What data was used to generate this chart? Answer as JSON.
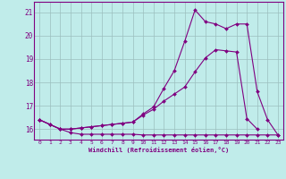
{
  "xlabel": "Windchill (Refroidissement éolien,°C)",
  "bg_color": "#c0ecea",
  "line_color": "#800080",
  "grid_color": "#9bbfbe",
  "xlim": [
    -0.5,
    23.5
  ],
  "ylim": [
    15.55,
    21.45
  ],
  "yticks": [
    16,
    17,
    18,
    19,
    20,
    21
  ],
  "xticks": [
    0,
    1,
    2,
    3,
    4,
    5,
    6,
    7,
    8,
    9,
    10,
    11,
    12,
    13,
    14,
    15,
    16,
    17,
    18,
    19,
    20,
    21,
    22,
    23
  ],
  "line1_x": [
    0,
    1,
    2,
    3,
    4,
    5,
    6,
    7,
    8,
    9,
    10,
    11,
    12,
    13,
    14,
    15,
    16,
    17,
    18,
    19,
    20,
    21,
    22,
    23
  ],
  "line1_y": [
    16.4,
    16.2,
    16.0,
    15.85,
    15.78,
    15.78,
    15.78,
    15.78,
    15.78,
    15.78,
    15.75,
    15.75,
    15.75,
    15.75,
    15.75,
    15.75,
    15.75,
    15.75,
    15.75,
    15.75,
    15.75,
    15.75,
    15.75,
    15.75
  ],
  "line2_x": [
    0,
    1,
    2,
    3,
    4,
    5,
    6,
    7,
    8,
    9,
    10,
    11,
    12,
    13,
    14,
    15,
    16,
    17,
    18,
    19,
    20,
    21
  ],
  "line2_y": [
    16.4,
    16.2,
    16.0,
    16.0,
    16.05,
    16.1,
    16.15,
    16.2,
    16.25,
    16.3,
    16.6,
    16.85,
    17.2,
    17.5,
    17.8,
    18.45,
    19.05,
    19.4,
    19.35,
    19.3,
    16.45,
    16.0
  ],
  "line3_x": [
    0,
    1,
    2,
    3,
    4,
    5,
    6,
    7,
    8,
    9,
    10,
    11,
    12,
    13,
    14,
    15,
    16,
    17,
    18,
    19,
    20,
    21,
    22,
    23
  ],
  "line3_y": [
    16.4,
    16.2,
    16.0,
    16.0,
    16.05,
    16.1,
    16.15,
    16.2,
    16.25,
    16.3,
    16.65,
    16.95,
    17.75,
    18.5,
    19.75,
    21.1,
    20.6,
    20.5,
    20.3,
    20.5,
    20.5,
    17.6,
    16.4,
    15.75
  ]
}
